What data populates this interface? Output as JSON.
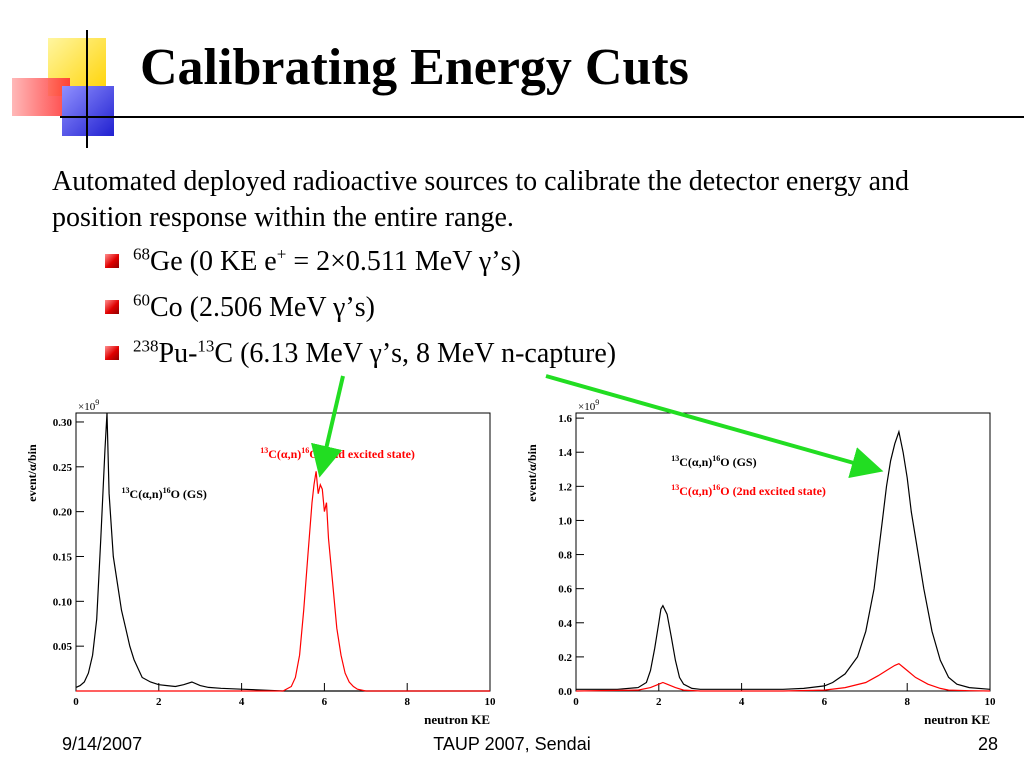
{
  "slide": {
    "title": "Calibrating Energy Cuts",
    "intro": "Automated deployed radioactive sources to calibrate the detector energy and position response within the entire range.",
    "bullets": [
      {
        "sup1": "68",
        "text1": "Ge (0 KE e",
        "sup2": "+",
        "text2": " = 2×0.511 MeV γ’s)"
      },
      {
        "sup1": "60",
        "text1": "Co (2.506 MeV γ’s)"
      },
      {
        "sup1": "238",
        "text1": "Pu-",
        "sup2": "13",
        "text2": "C (6.13 MeV γ’s, 8 MeV n-capture)"
      }
    ]
  },
  "footer": {
    "date": "9/14/2007",
    "center": "TAUP 2007, Sendai",
    "page": "28"
  },
  "colors": {
    "black_series": "#000000",
    "red_series": "#ff0000",
    "arrow": "#22dd22",
    "bullet": "#cc0000"
  },
  "chart_data": [
    {
      "type": "line",
      "xlabel": "neutron KE",
      "ylabel": "event/α/bin",
      "scale_label": "×10",
      "scale_exp": "9",
      "xlim": [
        0,
        10
      ],
      "ylim": [
        0,
        0.31
      ],
      "xticks": [
        0,
        2,
        4,
        6,
        8,
        10
      ],
      "xtick_labels": [
        "0",
        "2",
        "4",
        "6",
        "8",
        "10"
      ],
      "yticks": [
        0.05,
        0.1,
        0.15,
        0.2,
        0.25,
        0.3
      ],
      "ytick_labels": [
        "0.05",
        "0.10",
        "0.15",
        "0.20",
        "0.25",
        "0.30"
      ],
      "annotations": [
        {
          "parts": [
            "13",
            "C(α,n)",
            "16",
            "O (GS)"
          ],
          "color": "#000000",
          "at": [
            1.1,
            0.215
          ]
        },
        {
          "parts": [
            "13",
            "C(α,n)",
            "16",
            "O (2nd excited state)"
          ],
          "color": "#ff0000",
          "at": [
            4.45,
            0.26
          ]
        }
      ],
      "series": [
        {
          "color": "#000000",
          "x": [
            0.0,
            0.1,
            0.2,
            0.3,
            0.4,
            0.5,
            0.6,
            0.7,
            0.75,
            0.8,
            0.9,
            1.0,
            1.1,
            1.2,
            1.3,
            1.4,
            1.5,
            1.6,
            1.8,
            2.0,
            2.2,
            2.4,
            2.6,
            2.8,
            3.0,
            3.2,
            3.5,
            4.0,
            5.0,
            6.0,
            7.0,
            8.0,
            9.0,
            10.0
          ],
          "y": [
            0.004,
            0.006,
            0.01,
            0.02,
            0.04,
            0.08,
            0.17,
            0.27,
            0.31,
            0.22,
            0.15,
            0.12,
            0.09,
            0.07,
            0.05,
            0.035,
            0.025,
            0.015,
            0.01,
            0.007,
            0.006,
            0.005,
            0.007,
            0.01,
            0.006,
            0.004,
            0.003,
            0.002,
            0.0,
            0.0,
            0.0,
            0.0,
            0.0,
            0.0
          ]
        },
        {
          "color": "#ff0000",
          "x": [
            0.0,
            5.0,
            5.2,
            5.3,
            5.4,
            5.5,
            5.6,
            5.7,
            5.75,
            5.8,
            5.85,
            5.9,
            5.95,
            6.0,
            6.05,
            6.1,
            6.2,
            6.3,
            6.4,
            6.5,
            6.6,
            6.7,
            6.8,
            7.0,
            10.0
          ],
          "y": [
            0.0,
            0.0,
            0.005,
            0.015,
            0.04,
            0.09,
            0.15,
            0.21,
            0.23,
            0.245,
            0.22,
            0.23,
            0.225,
            0.2,
            0.21,
            0.17,
            0.12,
            0.07,
            0.04,
            0.02,
            0.01,
            0.005,
            0.002,
            0.0,
            0.0
          ]
        }
      ]
    },
    {
      "type": "line",
      "xlabel": "neutron KE",
      "ylabel": "event/α/bin",
      "scale_label": "×10",
      "scale_exp": "9",
      "xlim": [
        0,
        10
      ],
      "ylim": [
        0,
        1.63
      ],
      "xticks": [
        0,
        2,
        4,
        6,
        8,
        10
      ],
      "xtick_labels": [
        "0",
        "2",
        "4",
        "6",
        "8",
        "10"
      ],
      "yticks": [
        0.0,
        0.2,
        0.4,
        0.6,
        0.8,
        1.0,
        1.2,
        1.4,
        1.6
      ],
      "ytick_labels": [
        "0.0",
        "0.2",
        "0.4",
        "0.6",
        "0.8",
        "1.0",
        "1.2",
        "1.4",
        "1.6"
      ],
      "annotations": [
        {
          "parts": [
            "13",
            "C(α,n)",
            "16",
            "O (GS)"
          ],
          "color": "#000000",
          "at": [
            2.3,
            1.32
          ]
        },
        {
          "parts": [
            "13",
            "C(α,n)",
            "16",
            "O (2nd excited state)"
          ],
          "color": "#ff0000",
          "at": [
            2.3,
            1.15
          ]
        }
      ],
      "series": [
        {
          "color": "#000000",
          "x": [
            0.0,
            1.0,
            1.5,
            1.7,
            1.8,
            1.9,
            2.0,
            2.05,
            2.1,
            2.2,
            2.3,
            2.4,
            2.5,
            2.6,
            2.8,
            3.0,
            4.0,
            5.0,
            5.5,
            6.0,
            6.2,
            6.5,
            6.8,
            7.0,
            7.2,
            7.3,
            7.4,
            7.5,
            7.6,
            7.7,
            7.8,
            7.9,
            8.0,
            8.1,
            8.2,
            8.4,
            8.6,
            8.8,
            9.0,
            9.2,
            9.5,
            10.0
          ],
          "y": [
            0.01,
            0.01,
            0.02,
            0.05,
            0.12,
            0.25,
            0.4,
            0.48,
            0.5,
            0.45,
            0.32,
            0.18,
            0.08,
            0.04,
            0.015,
            0.01,
            0.01,
            0.01,
            0.015,
            0.03,
            0.05,
            0.1,
            0.2,
            0.35,
            0.6,
            0.8,
            1.0,
            1.2,
            1.35,
            1.45,
            1.52,
            1.4,
            1.25,
            1.05,
            0.9,
            0.6,
            0.35,
            0.18,
            0.08,
            0.04,
            0.02,
            0.01
          ]
        },
        {
          "color": "#ff0000",
          "x": [
            0.0,
            1.5,
            1.8,
            2.0,
            2.1,
            2.2,
            2.4,
            2.6,
            3.0,
            5.0,
            6.0,
            6.5,
            7.0,
            7.3,
            7.5,
            7.7,
            7.8,
            7.9,
            8.0,
            8.2,
            8.5,
            8.8,
            9.0,
            9.5,
            10.0
          ],
          "y": [
            0.0,
            0.005,
            0.02,
            0.04,
            0.05,
            0.04,
            0.02,
            0.005,
            0.0,
            0.0,
            0.005,
            0.02,
            0.05,
            0.09,
            0.12,
            0.15,
            0.16,
            0.14,
            0.12,
            0.08,
            0.04,
            0.015,
            0.005,
            0.002,
            0.0
          ]
        }
      ]
    }
  ]
}
